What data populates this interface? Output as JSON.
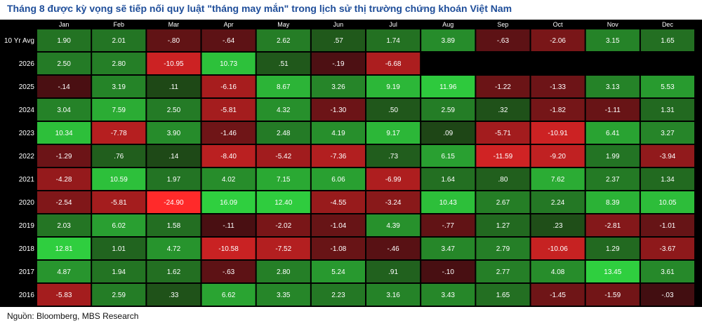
{
  "title": "Tháng 8 được kỳ vọng sẽ tiếp nối quy luật \"tháng may mắn\" trong lịch sử thị trường chứng khoán Việt Nam",
  "source": "Nguồn: Bloomberg, MBS Research",
  "colors": {
    "background": "#000000",
    "negative": "#ff2a2a",
    "positive": "#2fcf3f",
    "neutral": "#1c3a12",
    "text": "#ffffff",
    "title": "#1f4e9a"
  },
  "chart_data": {
    "type": "heatmap",
    "columns": [
      "Jan",
      "Feb",
      "Mar",
      "Apr",
      "May",
      "Jun",
      "Jul",
      "Aug",
      "Sep",
      "Oct",
      "Nov",
      "Dec"
    ],
    "rows": [
      {
        "label": "10 Yr Avg",
        "values": [
          "1.90",
          "2.01",
          "-.80",
          "-.64",
          "2.62",
          ".57",
          "1.74",
          "3.89",
          "-.63",
          "-2.06",
          "3.15",
          "1.65"
        ]
      },
      {
        "label": "2026",
        "values": [
          "2.50",
          "2.80",
          "-10.95",
          "10.73",
          ".51",
          "-.19",
          "-6.68",
          null,
          null,
          null,
          null,
          null
        ]
      },
      {
        "label": "2025",
        "values": [
          "-.14",
          "3.19",
          ".11",
          "-6.16",
          "8.67",
          "3.26",
          "9.19",
          "11.96",
          "-1.22",
          "-1.33",
          "3.13",
          "5.53"
        ]
      },
      {
        "label": "2024",
        "values": [
          "3.04",
          "7.59",
          "2.50",
          "-5.81",
          "4.32",
          "-1.30",
          ".50",
          "2.59",
          ".32",
          "-1.82",
          "-1.11",
          "1.31"
        ]
      },
      {
        "label": "2023",
        "values": [
          "10.34",
          "-7.78",
          "3.90",
          "-1.46",
          "2.48",
          "4.19",
          "9.17",
          ".09",
          "-5.71",
          "-10.91",
          "6.41",
          "3.27"
        ]
      },
      {
        "label": "2022",
        "values": [
          "-1.29",
          ".76",
          ".14",
          "-8.40",
          "-5.42",
          "-7.36",
          ".73",
          "6.15",
          "-11.59",
          "-9.20",
          "1.99",
          "-3.94"
        ]
      },
      {
        "label": "2021",
        "values": [
          "-4.28",
          "10.59",
          "1.97",
          "4.02",
          "7.15",
          "6.06",
          "-6.99",
          "1.64",
          ".80",
          "7.62",
          "2.37",
          "1.34"
        ]
      },
      {
        "label": "2020",
        "values": [
          "-2.54",
          "-5.81",
          "-24.90",
          "16.09",
          "12.40",
          "-4.55",
          "-3.24",
          "10.43",
          "2.67",
          "2.24",
          "8.39",
          "10.05"
        ]
      },
      {
        "label": "2019",
        "values": [
          "2.03",
          "6.02",
          "1.58",
          "-.11",
          "-2.02",
          "-1.04",
          "4.39",
          "-.77",
          "1.27",
          ".23",
          "-2.81",
          "-1.01"
        ]
      },
      {
        "label": "2018",
        "values": [
          "12.81",
          "1.01",
          "4.72",
          "-10.58",
          "-7.52",
          "-1.08",
          "-.46",
          "3.47",
          "2.79",
          "-10.06",
          "1.29",
          "-3.67"
        ]
      },
      {
        "label": "2017",
        "values": [
          "4.87",
          "1.94",
          "1.62",
          "-.63",
          "2.80",
          "5.24",
          ".91",
          "-.10",
          "2.77",
          "4.08",
          "13.45",
          "3.61"
        ]
      },
      {
        "label": "2016",
        "values": [
          "-5.83",
          "2.59",
          ".33",
          "6.62",
          "3.35",
          "2.23",
          "3.16",
          "3.43",
          "1.65",
          "-1.45",
          "-1.59",
          "-.03"
        ]
      }
    ]
  }
}
